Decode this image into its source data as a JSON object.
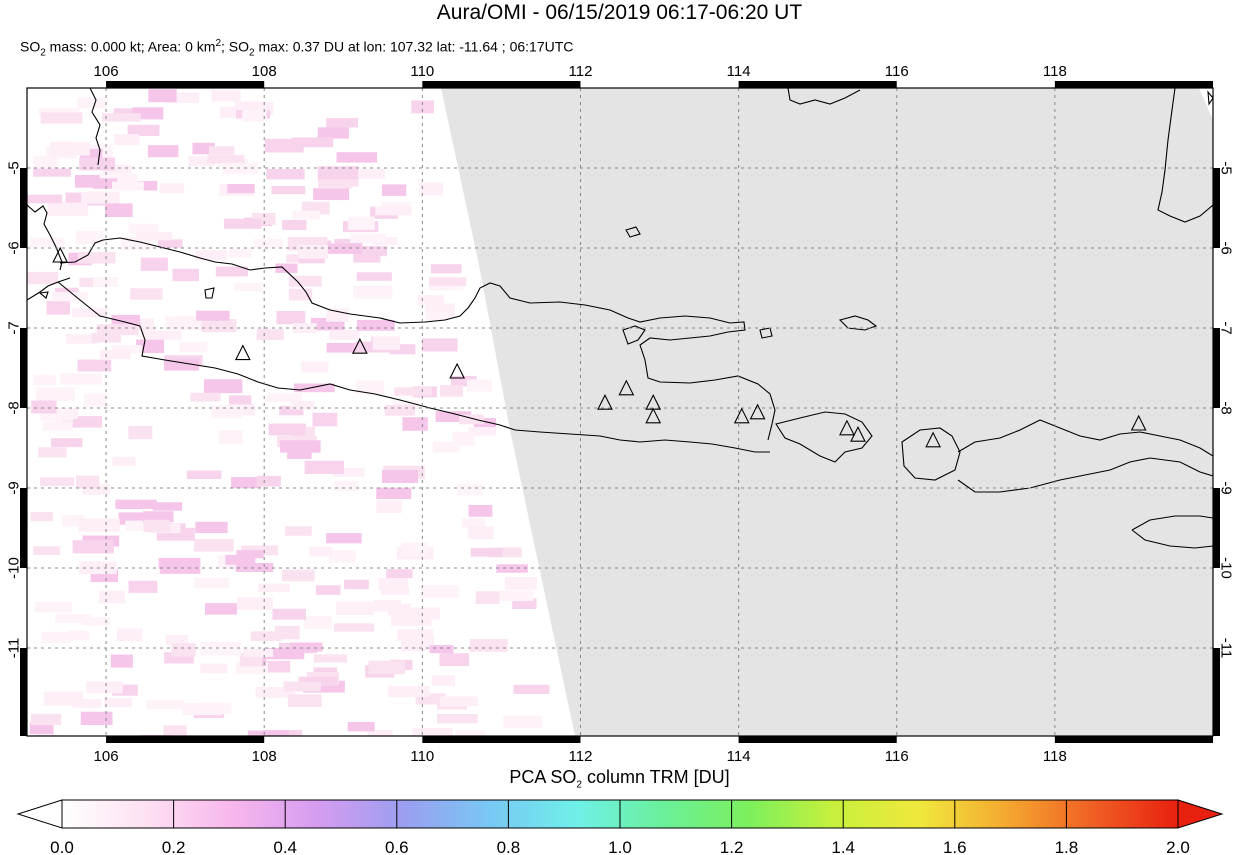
{
  "header": {
    "title": "Aura/OMI - 06/15/2019 06:17-06:20 UT",
    "subtitle": {
      "part1": "SO",
      "sub1": "2",
      "part2": " mass: 0.000 kt; Area: 0 km",
      "sup1": "2",
      "part3": "; SO",
      "sub2": "2",
      "part4": " max: 0.37 DU at lon: 107.32 lat: -11.64 ; 06:17UTC"
    }
  },
  "map": {
    "lon_range": [
      105.0,
      120.0
    ],
    "lat_range": [
      -12.1,
      -4.0
    ],
    "lon_ticks": [
      "106",
      "108",
      "110",
      "112",
      "114",
      "116",
      "118"
    ],
    "lat_ticks": [
      "-5",
      "-6",
      "-7",
      "-8",
      "-9",
      "-10",
      "-11"
    ],
    "lon_tick_values": [
      106,
      108,
      110,
      112,
      114,
      116,
      118
    ],
    "lat_tick_values": [
      -5,
      -6,
      -7,
      -8,
      -9,
      -10,
      -11
    ],
    "grid": true,
    "no_data_color": "#e4e4e4",
    "volcanoes": [
      {
        "lon": 105.42,
        "lat": -6.1
      },
      {
        "lon": 107.73,
        "lat": -7.32
      },
      {
        "lon": 109.21,
        "lat": -7.24
      },
      {
        "lon": 110.44,
        "lat": -7.55
      },
      {
        "lon": 112.31,
        "lat": -7.94
      },
      {
        "lon": 112.58,
        "lat": -7.76
      },
      {
        "lon": 112.92,
        "lat": -7.94
      },
      {
        "lon": 112.92,
        "lat": -8.11
      },
      {
        "lon": 114.04,
        "lat": -8.11
      },
      {
        "lon": 114.24,
        "lat": -8.06
      },
      {
        "lon": 115.37,
        "lat": -8.26
      },
      {
        "lon": 115.51,
        "lat": -8.34
      },
      {
        "lon": 116.46,
        "lat": -8.41
      },
      {
        "lon": 119.06,
        "lat": -8.2
      }
    ]
  },
  "colorbar": {
    "title_main": "PCA SO",
    "title_sub": "2",
    "title_tail": " column TRM [DU]",
    "ticks": [
      "0.0",
      "0.2",
      "0.4",
      "0.6",
      "0.8",
      "1.0",
      "1.2",
      "1.4",
      "1.6",
      "1.8",
      "2.0"
    ],
    "range": [
      0.0,
      2.0
    ],
    "colors": [
      "#ffffff",
      "#fde0f2",
      "#f7b6ec",
      "#d49cf0",
      "#9a9ff0",
      "#78c8f4",
      "#6ff0e8",
      "#6af09a",
      "#7cf05c",
      "#c8f03c",
      "#f0e83c",
      "#f4a830",
      "#f06024",
      "#e82010"
    ]
  }
}
